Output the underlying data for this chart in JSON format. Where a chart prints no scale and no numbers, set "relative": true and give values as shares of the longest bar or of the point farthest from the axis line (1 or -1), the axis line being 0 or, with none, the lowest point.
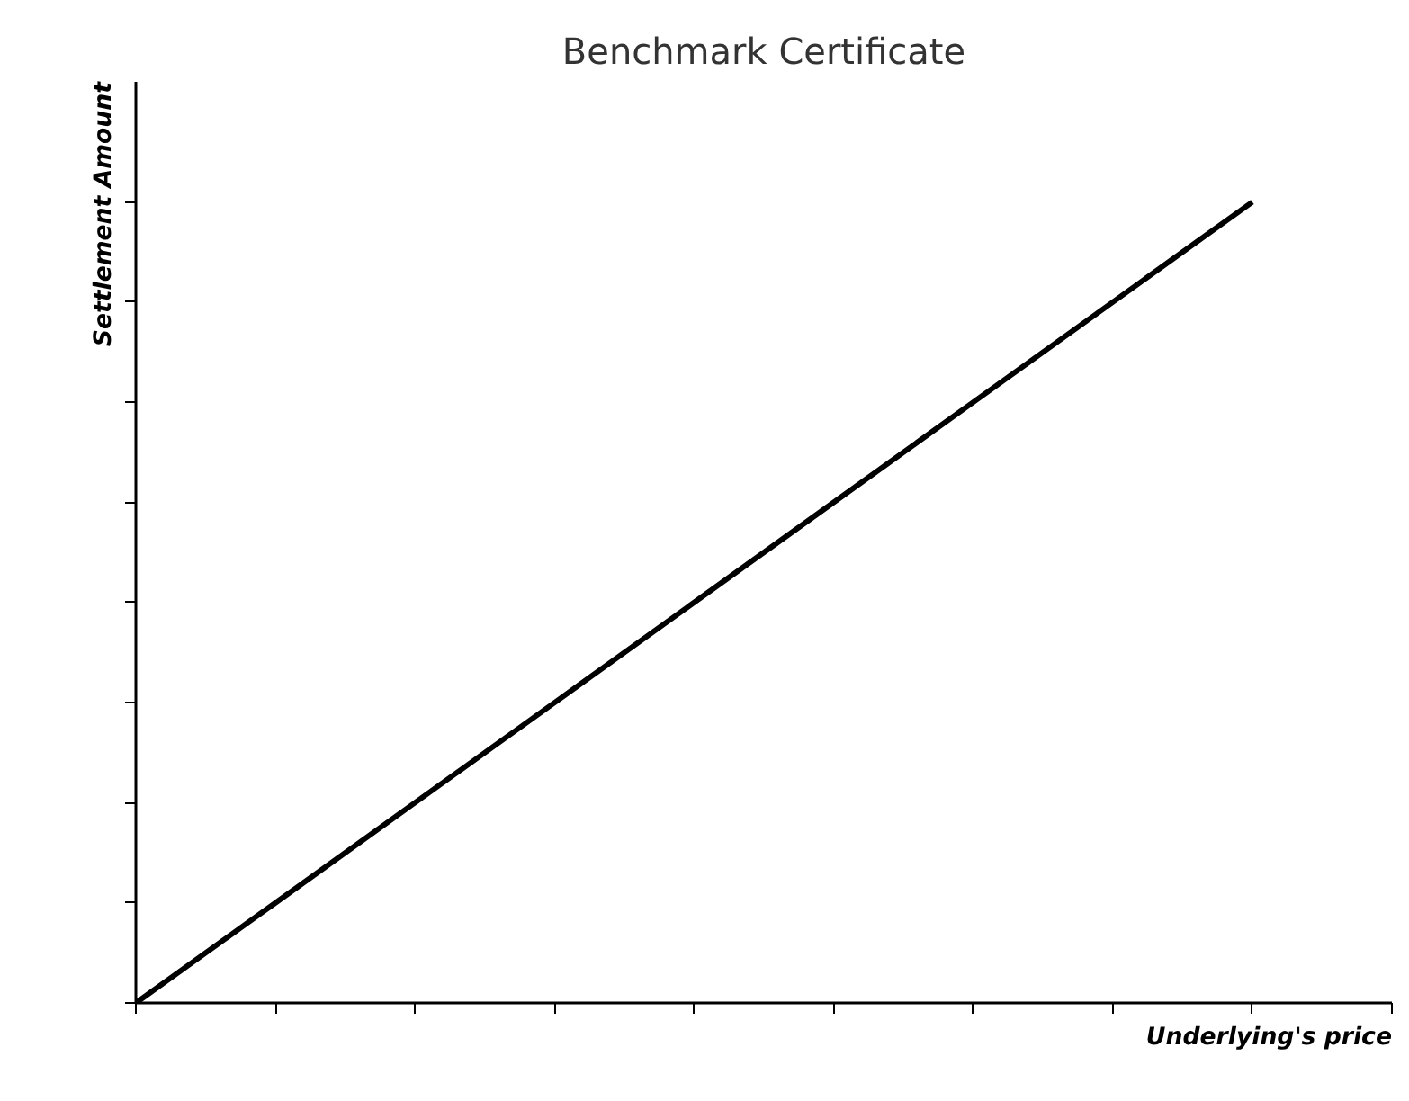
{
  "chart_data": {
    "type": "line",
    "title": "Benchmark Certificate",
    "xlabel": "Underlying's price",
    "ylabel": "Settlement Amount",
    "relative": true,
    "categories": [
      null,
      null,
      null,
      null,
      null,
      null,
      null,
      null,
      null
    ],
    "series": [
      {
        "color": "#000000",
        "values": [
          0,
          0.125,
          0.25,
          0.375,
          0.5,
          0.625,
          0.75,
          0.875,
          1
        ]
      }
    ],
    "grid": false,
    "marker": "none",
    "line_style": "solid",
    "tick_labels": false
  }
}
